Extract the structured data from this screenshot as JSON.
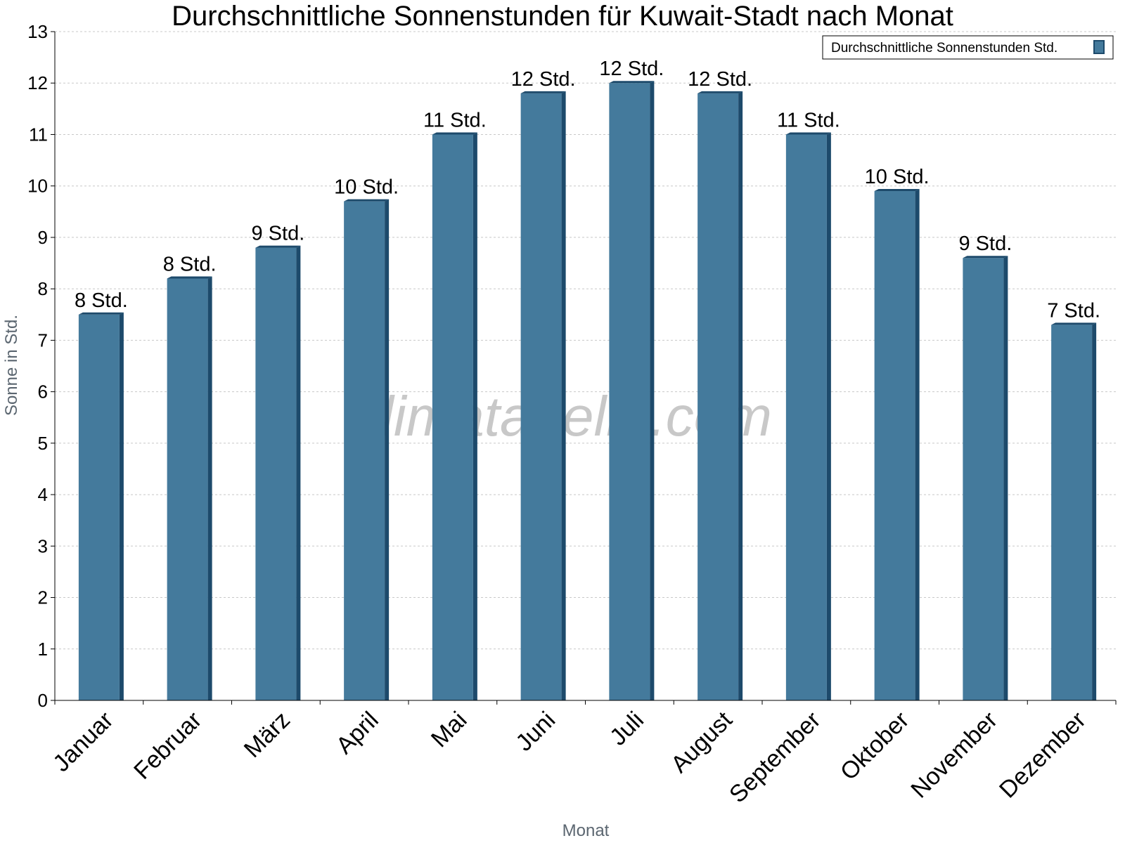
{
  "chart_data": {
    "type": "bar",
    "title": "Durchschnittliche Sonnenstunden für Kuwait-Stadt nach Monat",
    "xlabel": "Monat",
    "ylabel": "Sonne in Std.",
    "ylim": [
      0,
      13
    ],
    "yticks": [
      "0",
      "1",
      "2",
      "3",
      "4",
      "5",
      "6",
      "7",
      "8",
      "9",
      "10",
      "11",
      "12",
      "13"
    ],
    "grid": true,
    "legend_position": "top-right",
    "categories": [
      "Januar",
      "Februar",
      "März",
      "April",
      "Mai",
      "Juni",
      "Juli",
      "August",
      "September",
      "Oktober",
      "November",
      "Dezember"
    ],
    "series": [
      {
        "name": "Durchschnittliche Sonnenstunden Std.",
        "values": [
          7.5,
          8.2,
          8.8,
          9.7,
          11.0,
          11.8,
          12.0,
          11.8,
          11.0,
          9.9,
          8.6,
          7.3
        ],
        "labels": [
          "8 Std.",
          "8 Std.",
          "9 Std.",
          "10 Std.",
          "11 Std.",
          "12 Std.",
          "12 Std.",
          "12 Std.",
          "11 Std.",
          "10 Std.",
          "9 Std.",
          "7 Std."
        ],
        "color": "#447a9c",
        "side_color": "#1d4a6b"
      }
    ],
    "watermark": "klimatabelle.com"
  }
}
